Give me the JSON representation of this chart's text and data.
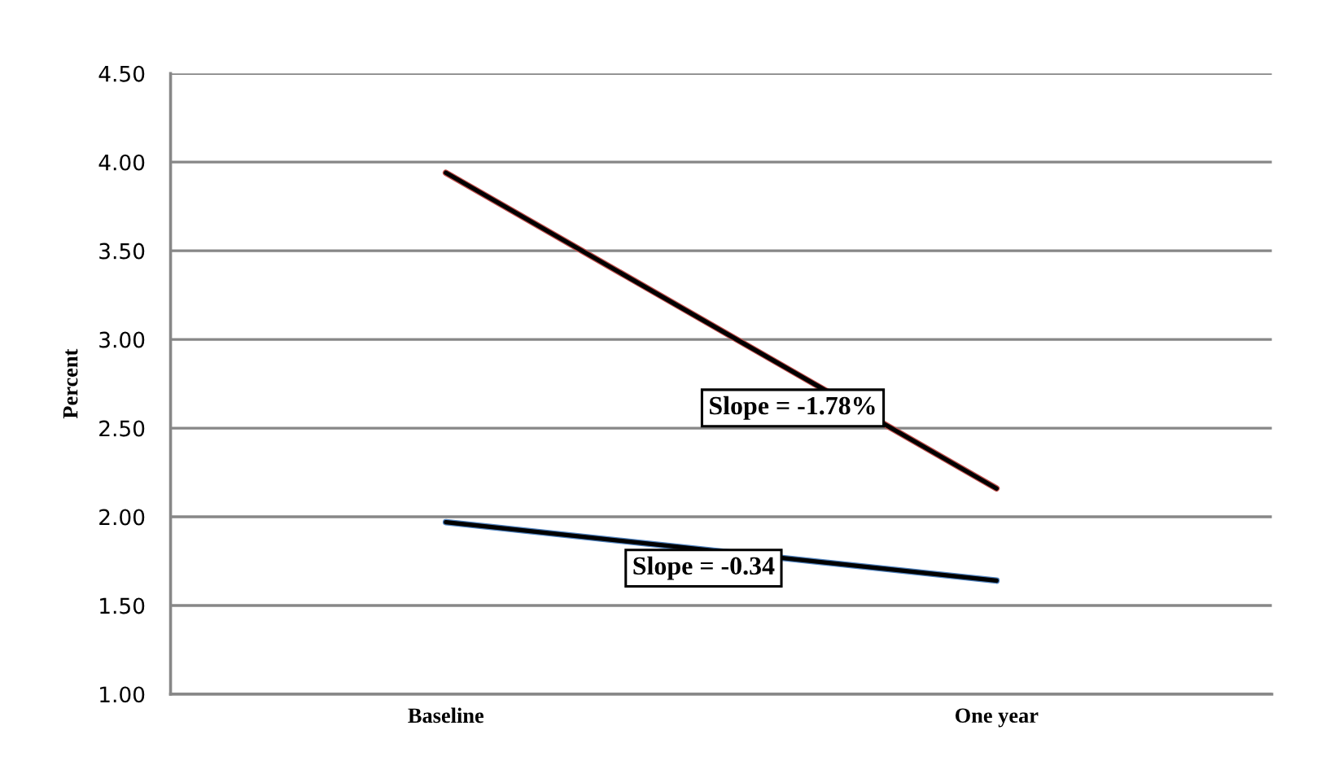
{
  "chart_data": {
    "type": "line",
    "ylabel": "Percent",
    "categories": [
      "Baseline",
      "One year"
    ],
    "series": [
      {
        "color": "#c0504d",
        "values": [
          3.94,
          2.16
        ]
      },
      {
        "color": "#4f81bd",
        "values": [
          1.97,
          1.64
        ]
      }
    ],
    "ylim": [
      1,
      4.5
    ],
    "yticks": [
      {
        "value": 1,
        "label": "1.00"
      },
      {
        "value": 1.5,
        "label": "1.50"
      },
      {
        "value": 2,
        "label": "2.00"
      },
      {
        "value": 2.5,
        "label": "2.50"
      },
      {
        "value": 3,
        "label": "3.00"
      },
      {
        "value": 3.5,
        "label": "3.50"
      },
      {
        "value": 4,
        "label": "4.00"
      },
      {
        "value": 4.5,
        "label": "4.50"
      }
    ],
    "grid": "y",
    "line_style": "solid",
    "annotations": [
      "Slope = -1.78%",
      "Slope = -0.34"
    ]
  }
}
